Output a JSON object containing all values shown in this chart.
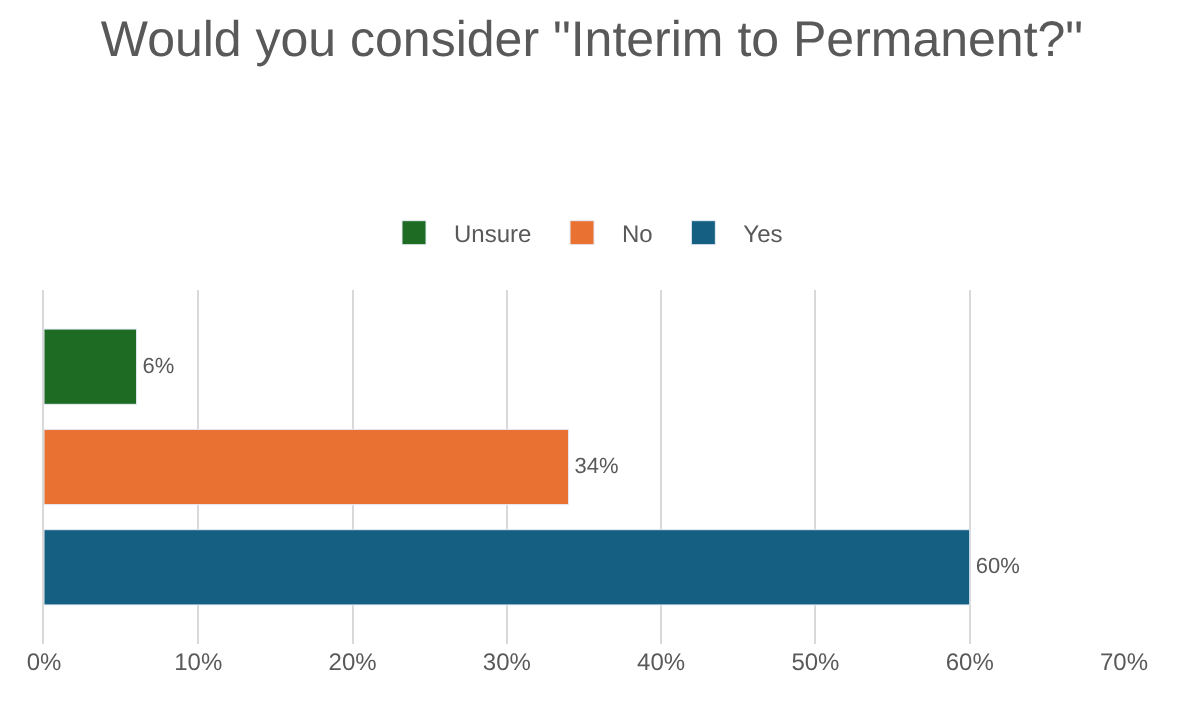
{
  "chart_data": {
    "type": "bar",
    "orientation": "horizontal",
    "title": "Would you consider \"Interim to Permanent?\"",
    "categories": [
      null
    ],
    "series": [
      {
        "name": "Unsure",
        "color": "#1e6b24",
        "values": [
          6
        ],
        "value_labels": [
          "6%"
        ]
      },
      {
        "name": "No",
        "color": "#e97132",
        "values": [
          34
        ],
        "value_labels": [
          "34%"
        ]
      },
      {
        "name": "Yes",
        "color": "#156082",
        "values": [
          60
        ],
        "value_labels": [
          "60%"
        ]
      }
    ],
    "xlim": [
      0,
      70
    ],
    "xticks": [
      {
        "value": 0,
        "label": "0%"
      },
      {
        "value": 10,
        "label": "10%"
      },
      {
        "value": 20,
        "label": "20%"
      },
      {
        "value": 30,
        "label": "30%"
      },
      {
        "value": 40,
        "label": "40%"
      },
      {
        "value": 50,
        "label": "50%"
      },
      {
        "value": 60,
        "label": "60%"
      },
      {
        "value": 70,
        "label": "70%"
      }
    ],
    "grid": "x",
    "legend": "top"
  }
}
